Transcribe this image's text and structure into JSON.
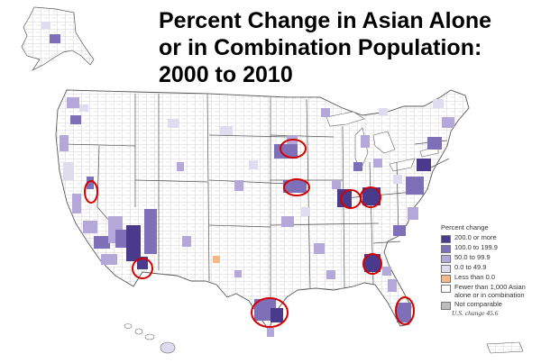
{
  "title": {
    "line1": "Percent Change in Asian Alone",
    "line2": "or in Combination Population:",
    "line3": "2000 to 2010"
  },
  "legend": {
    "title": "Percent change",
    "items": [
      {
        "label": "200.0 or more",
        "color": "#4a3a8c"
      },
      {
        "label": "100.0 to 199.9",
        "color": "#7d6fb8"
      },
      {
        "label": "50.0 to 99.9",
        "color": "#b3a8d9"
      },
      {
        "label": "0.0 to 49.9",
        "color": "#e0dcf0"
      },
      {
        "label": "Less than 0.0",
        "color": "#f3b98a"
      },
      {
        "label": "Fewer than 1,000 Asian alone or in combination",
        "color": "#ffffff"
      },
      {
        "label": "Not comparable",
        "color": "#bdbdbd"
      }
    ]
  },
  "us_change": "U.S. change 45.6",
  "colors": {
    "highlight_circle": "#d40000",
    "county_border": "#9a9a9a",
    "state_border": "#444444"
  }
}
